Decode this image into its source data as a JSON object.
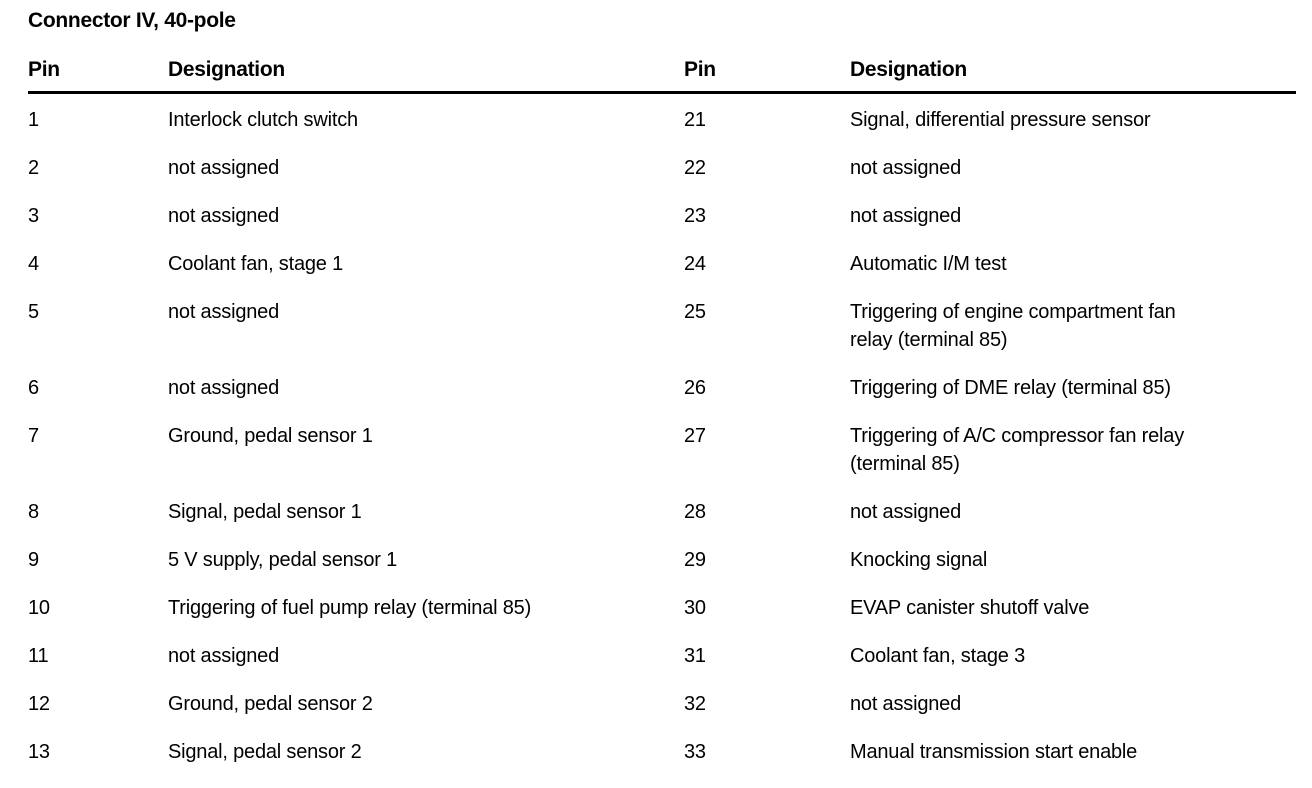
{
  "title": "Connector IV, 40-pole",
  "colors": {
    "text": "#000000",
    "background": "#ffffff",
    "header_rule": "#000000"
  },
  "table": {
    "headers": {
      "pin": "Pin",
      "designation": "Designation"
    },
    "rows": [
      {
        "left_pin": "1",
        "left_designation": "Interlock clutch switch",
        "right_pin": "21",
        "right_designation": "Signal, differential pressure sensor"
      },
      {
        "left_pin": "2",
        "left_designation": "not assigned",
        "right_pin": "22",
        "right_designation": "not assigned"
      },
      {
        "left_pin": "3",
        "left_designation": "not assigned",
        "right_pin": "23",
        "right_designation": "not assigned"
      },
      {
        "left_pin": "4",
        "left_designation": "Coolant fan, stage 1",
        "right_pin": "24",
        "right_designation": "Automatic I/M test"
      },
      {
        "left_pin": "5",
        "left_designation": "not assigned",
        "right_pin": "25",
        "right_designation": "Triggering of engine compartment fan\nrelay (terminal 85)"
      },
      {
        "left_pin": "6",
        "left_designation": "not assigned",
        "right_pin": "26",
        "right_designation": "Triggering of DME relay (terminal 85)"
      },
      {
        "left_pin": "7",
        "left_designation": "Ground, pedal sensor 1",
        "right_pin": "27",
        "right_designation": "Triggering of A/C compressor fan relay\n(terminal 85)"
      },
      {
        "left_pin": "8",
        "left_designation": "Signal, pedal sensor 1",
        "right_pin": "28",
        "right_designation": "not assigned"
      },
      {
        "left_pin": "9",
        "left_designation": "5 V supply, pedal sensor 1",
        "right_pin": "29",
        "right_designation": "Knocking signal"
      },
      {
        "left_pin": "10",
        "left_designation": "Triggering of fuel pump relay (terminal 85)",
        "right_pin": "30",
        "right_designation": "EVAP canister shutoff valve"
      },
      {
        "left_pin": "11",
        "left_designation": "not assigned",
        "right_pin": "31",
        "right_designation": "Coolant fan, stage 3"
      },
      {
        "left_pin": "12",
        "left_designation": "Ground, pedal sensor 2",
        "right_pin": "32",
        "right_designation": "not assigned"
      },
      {
        "left_pin": "13",
        "left_designation": "Signal, pedal sensor 2",
        "right_pin": "33",
        "right_designation": "Manual transmission start enable"
      }
    ]
  }
}
